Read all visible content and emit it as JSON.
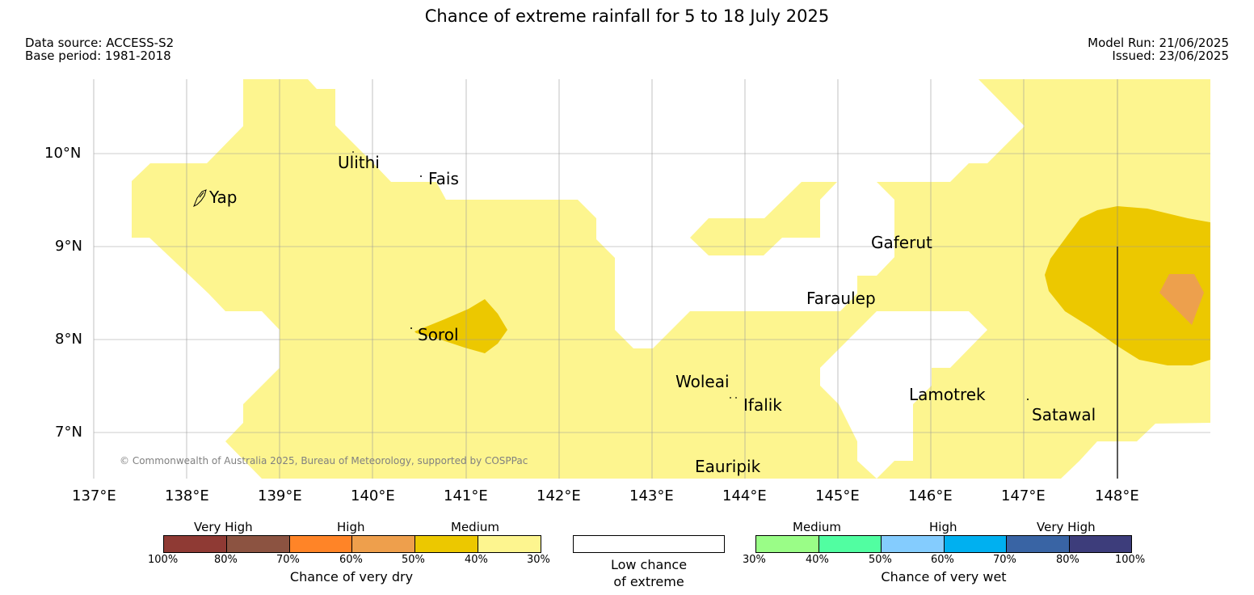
{
  "title": "Chance of extreme rainfall for 5 to 18 July 2025",
  "header": {
    "data_source": "Data source: ACCESS-S2",
    "base_period": "Base period: 1981-2018",
    "model_run": "Model Run: 21/06/2025",
    "issued": "Issued: 23/06/2025"
  },
  "map": {
    "lon_range": [
      137,
      149
    ],
    "lat_range": [
      6.5,
      10.8
    ],
    "lon_ticks": [
      "137°E",
      "138°E",
      "139°E",
      "140°E",
      "141°E",
      "142°E",
      "143°E",
      "144°E",
      "145°E",
      "146°E",
      "147°E",
      "148°E"
    ],
    "lat_ticks": [
      "10°N",
      "9°N",
      "8°N",
      "7°N"
    ],
    "islands": [
      "Yap",
      "Ulithi",
      "Fais",
      "Gaferut",
      "Faraulep",
      "Sorol",
      "Woleai",
      "Ifalik",
      "Lamotrek",
      "Satawal",
      "Eauripik"
    ],
    "copyright": "© Commonwealth of Australia 2025, Bureau of Meteorology, supported by COSPPac",
    "colors": {
      "medium_dry": "#fdf58f",
      "high_dry_40_50": "#ecc800",
      "high_dry_50_60": "#eda04d"
    }
  },
  "legend": {
    "dry": {
      "categories": [
        "Very High",
        "High",
        "Medium"
      ],
      "ticks": [
        "100%",
        "80%",
        "70%",
        "60%",
        "50%",
        "40%",
        "30%"
      ],
      "colors": [
        "#8f3a34",
        "#8c5341",
        "#ff8427",
        "#ee9f4c",
        "#ecc800",
        "#fdf58f"
      ],
      "caption": "Chance of very dry"
    },
    "low": {
      "line1": "Low chance",
      "line2": "of extreme"
    },
    "wet": {
      "categories": [
        "Medium",
        "High",
        "Very High"
      ],
      "ticks": [
        "30%",
        "40%",
        "50%",
        "60%",
        "70%",
        "80%",
        "100%"
      ],
      "colors": [
        "#9afd87",
        "#51fea1",
        "#84ccfe",
        "#00b0f0",
        "#3964a4",
        "#3d3d7b"
      ],
      "caption": "Chance of very wet"
    }
  }
}
